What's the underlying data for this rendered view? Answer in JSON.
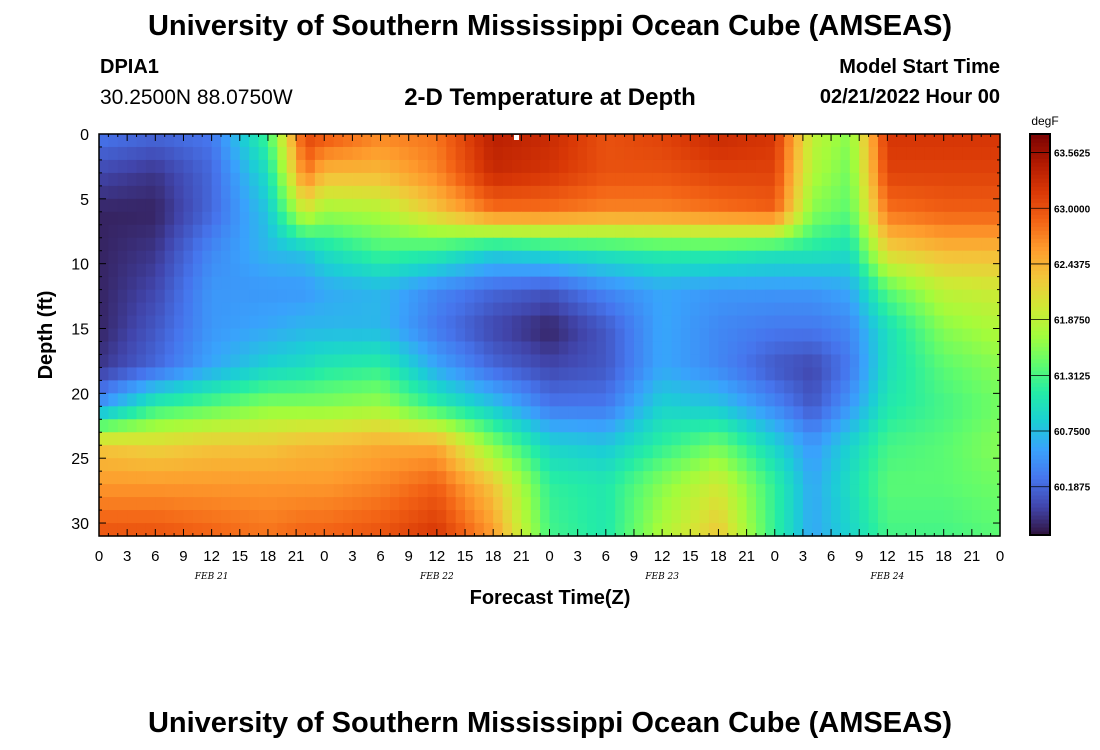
{
  "header": {
    "title": "University of Southern Mississippi Ocean Cube (AMSEAS)",
    "station": "DPIA1",
    "coords": "30.2500N  88.0750W",
    "subtitle": "2-D Temperature at Depth",
    "model_start_label": "Model Start Time",
    "model_start_value": "02/21/2022 Hour 00"
  },
  "footer": {
    "title": "University of Southern Mississippi Ocean Cube (AMSEAS)"
  },
  "chart_data": {
    "type": "heatmap",
    "title": "2-D Temperature at Depth",
    "xlabel": "Forecast Time(Z)",
    "ylabel": "Depth (ft)",
    "x_tick_labels": [
      "0",
      "3",
      "6",
      "9",
      "12",
      "15",
      "18",
      "21",
      "0",
      "3",
      "6",
      "9",
      "12",
      "15",
      "18",
      "21",
      "0",
      "3",
      "6",
      "9",
      "12",
      "15",
      "18",
      "21",
      "0",
      "3",
      "6",
      "9",
      "12",
      "15",
      "18",
      "21",
      "0"
    ],
    "day_labels": [
      "FEB 21",
      "FEB 22",
      "FEB 23",
      "FEB 24"
    ],
    "x_range_hours": [
      0,
      96
    ],
    "y_ticks": [
      0,
      5,
      10,
      15,
      20,
      25,
      30
    ],
    "y_range_ft": [
      0,
      31
    ],
    "colorbar": {
      "unit": "degF",
      "range": [
        59.7,
        63.75
      ],
      "tick_labels": [
        "63.5625",
        "63.0000",
        "62.4375",
        "61.8750",
        "61.3125",
        "60.7500",
        "60.1875"
      ],
      "tick_values": [
        63.5625,
        63.0,
        62.4375,
        61.875,
        61.3125,
        60.75,
        60.1875
      ]
    },
    "colors": [
      "#30123b",
      "#4145ab",
      "#4675ed",
      "#39a2fc",
      "#1bcfd4",
      "#24eca6",
      "#61fc6c",
      "#a4fc3b",
      "#d1e834",
      "#f3c63a",
      "#fe9b2d",
      "#f36315",
      "#d93806",
      "#b11901",
      "#7a0403"
    ],
    "time_hours": [
      0,
      6,
      12,
      18,
      22,
      24,
      30,
      36,
      42,
      48,
      54,
      60,
      66,
      72,
      76,
      80,
      84,
      90,
      96
    ],
    "depth_ft": [
      0,
      3,
      6,
      9,
      12,
      15,
      18,
      21,
      24,
      27,
      31
    ],
    "values": [
      [
        60.3,
        60.2,
        60.3,
        61.3,
        63.1,
        63.0,
        62.7,
        62.8,
        63.4,
        63.3,
        63.0,
        63.1,
        63.3,
        63.2,
        61.9,
        61.6,
        63.2,
        63.2,
        63.2
      ],
      [
        60.0,
        59.9,
        60.2,
        61.0,
        62.8,
        62.4,
        62.4,
        62.7,
        63.3,
        63.2,
        63.0,
        63.0,
        63.1,
        63.1,
        61.8,
        61.5,
        63.1,
        63.1,
        63.1
      ],
      [
        59.8,
        59.8,
        60.2,
        60.8,
        62.0,
        61.7,
        61.8,
        62.3,
        62.8,
        62.8,
        62.7,
        62.7,
        62.8,
        62.9,
        61.6,
        61.4,
        62.8,
        62.9,
        62.9
      ],
      [
        59.8,
        59.9,
        60.4,
        60.7,
        60.8,
        61.0,
        61.3,
        61.2,
        60.9,
        61.0,
        61.1,
        61.2,
        61.2,
        61.1,
        61.1,
        61.0,
        62.2,
        62.4,
        62.4
      ],
      [
        59.8,
        60.0,
        60.5,
        60.5,
        60.5,
        60.6,
        60.7,
        60.4,
        60.2,
        60.1,
        60.4,
        60.6,
        60.5,
        60.5,
        60.5,
        60.6,
        61.4,
        61.9,
        62.0
      ],
      [
        59.8,
        60.1,
        60.5,
        60.6,
        60.7,
        60.7,
        60.7,
        60.3,
        60.0,
        59.8,
        60.1,
        60.6,
        60.4,
        60.3,
        60.3,
        60.4,
        61.0,
        61.6,
        61.8
      ],
      [
        59.9,
        60.2,
        60.6,
        60.9,
        61.0,
        61.1,
        61.2,
        60.6,
        60.2,
        60.0,
        60.1,
        60.6,
        60.4,
        60.1,
        60.0,
        60.3,
        61.0,
        61.4,
        61.6
      ],
      [
        60.5,
        61.2,
        61.4,
        61.6,
        61.6,
        61.6,
        61.7,
        61.2,
        60.8,
        60.3,
        60.3,
        60.9,
        60.8,
        60.4,
        60.1,
        60.5,
        61.1,
        61.3,
        61.5
      ],
      [
        62.3,
        62.2,
        62.3,
        62.3,
        62.4,
        62.4,
        62.5,
        62.5,
        61.6,
        60.9,
        60.8,
        61.2,
        61.5,
        60.9,
        60.5,
        60.9,
        61.3,
        61.4,
        61.6
      ],
      [
        62.6,
        62.6,
        62.6,
        62.6,
        62.6,
        62.6,
        62.7,
        62.9,
        62.3,
        61.2,
        61.1,
        61.6,
        62.0,
        61.2,
        60.6,
        61.0,
        61.4,
        61.4,
        61.5
      ],
      [
        63.0,
        63.0,
        62.9,
        62.8,
        62.9,
        62.9,
        63.0,
        63.2,
        62.6,
        61.3,
        61.1,
        61.8,
        62.3,
        61.2,
        60.6,
        60.9,
        61.3,
        61.3,
        61.4
      ]
    ]
  }
}
